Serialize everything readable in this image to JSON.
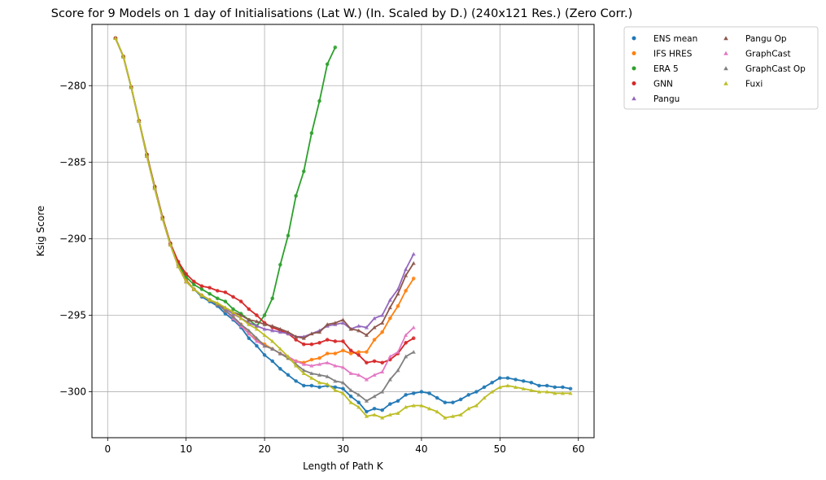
{
  "chart_data": {
    "type": "line",
    "title": "Score for 9 Models on 1 day of Initialisations (Lat W.) (In. Scaled by D.) (240x121 Res.) (Zero Corr.)",
    "xlabel": "Length of Path K",
    "ylabel": "Ksig Score",
    "xlim": [
      -2,
      62
    ],
    "ylim": [
      -303,
      -276
    ],
    "xticks": [
      0,
      10,
      20,
      30,
      40,
      50,
      60
    ],
    "xtick_labels": [
      "0",
      "10",
      "20",
      "30",
      "40",
      "50",
      "60"
    ],
    "yticks": [
      -280,
      -285,
      -290,
      -295,
      -300
    ],
    "ytick_labels": [
      "−280",
      "−285",
      "−290",
      "−295",
      "−300"
    ],
    "grid": true,
    "legend_position": "outside-top-right",
    "legend_columns": 2,
    "series": [
      {
        "name": "ENS mean",
        "color": "#1f77b4",
        "marker": "circle",
        "x": [
          1,
          2,
          3,
          4,
          5,
          6,
          7,
          8,
          9,
          10,
          11,
          12,
          13,
          14,
          15,
          16,
          17,
          18,
          19,
          20,
          21,
          22,
          23,
          24,
          25,
          26,
          27,
          28,
          29,
          30,
          31,
          32,
          33,
          34,
          35,
          36,
          37,
          38,
          39,
          40,
          41,
          42,
          43,
          44,
          45,
          46,
          47,
          48,
          49,
          50,
          51,
          52,
          53,
          54,
          55,
          56,
          57,
          58,
          59
        ],
        "y": [
          -276.9,
          -278.1,
          -280.1,
          -282.3,
          -284.6,
          -286.7,
          -288.7,
          -290.4,
          -291.7,
          -292.7,
          -293.3,
          -293.8,
          -294.1,
          -294.4,
          -294.9,
          -295.3,
          -295.8,
          -296.5,
          -297.0,
          -297.6,
          -298.0,
          -298.5,
          -298.9,
          -299.3,
          -299.6,
          -299.6,
          -299.7,
          -299.6,
          -299.7,
          -299.8,
          -300.3,
          -300.7,
          -301.3,
          -301.1,
          -301.2,
          -300.8,
          -300.6,
          -300.2,
          -300.1,
          -300.0,
          -300.1,
          -300.4,
          -300.7,
          -300.7,
          -300.5,
          -300.2,
          -300.0,
          -299.7,
          -299.4,
          -299.1,
          -299.1,
          -299.2,
          -299.3,
          -299.4,
          -299.6,
          -299.6,
          -299.7,
          -299.7,
          -299.8
        ]
      },
      {
        "name": "IFS HRES",
        "color": "#ff7f0e",
        "marker": "circle",
        "x": [
          1,
          2,
          3,
          4,
          5,
          6,
          7,
          8,
          9,
          10,
          11,
          12,
          13,
          14,
          15,
          16,
          17,
          18,
          19,
          20,
          21,
          22,
          23,
          24,
          25,
          26,
          27,
          28,
          29,
          30,
          31,
          32,
          33,
          34,
          35,
          36,
          37,
          38,
          39
        ],
        "y": [
          -276.9,
          -278.1,
          -280.1,
          -282.3,
          -284.6,
          -286.7,
          -288.7,
          -290.4,
          -291.7,
          -292.7,
          -293.3,
          -293.7,
          -294.0,
          -294.3,
          -294.7,
          -295.1,
          -295.6,
          -296.2,
          -296.6,
          -296.9,
          -297.2,
          -297.5,
          -297.8,
          -298.0,
          -298.1,
          -297.9,
          -297.8,
          -297.5,
          -297.5,
          -297.3,
          -297.5,
          -297.4,
          -297.4,
          -296.6,
          -296.1,
          -295.2,
          -294.4,
          -293.4,
          -292.6
        ]
      },
      {
        "name": "ERA 5",
        "color": "#2ca02c",
        "marker": "circle",
        "x": [
          1,
          2,
          3,
          4,
          5,
          6,
          7,
          8,
          9,
          10,
          11,
          12,
          13,
          14,
          15,
          16,
          17,
          18,
          19,
          20,
          21,
          22,
          23,
          24,
          25,
          26,
          27,
          28,
          29
        ],
        "y": [
          -276.9,
          -278.1,
          -280.1,
          -282.3,
          -284.5,
          -286.6,
          -288.6,
          -290.3,
          -291.6,
          -292.5,
          -293.0,
          -293.3,
          -293.6,
          -293.9,
          -294.1,
          -294.6,
          -294.9,
          -295.3,
          -295.7,
          -295.0,
          -293.9,
          -291.7,
          -289.8,
          -287.2,
          -285.6,
          -283.1,
          -281.0,
          -278.6,
          -277.5
        ]
      },
      {
        "name": "GNN",
        "color": "#d62728",
        "marker": "circle",
        "x": [
          1,
          2,
          3,
          4,
          5,
          6,
          7,
          8,
          9,
          10,
          11,
          12,
          13,
          14,
          15,
          16,
          17,
          18,
          19,
          20,
          21,
          22,
          23,
          24,
          25,
          26,
          27,
          28,
          29,
          30,
          31,
          32,
          33,
          34,
          35,
          36,
          37,
          38,
          39
        ],
        "y": [
          -276.9,
          -278.1,
          -280.1,
          -282.3,
          -284.5,
          -286.6,
          -288.6,
          -290.3,
          -291.5,
          -292.3,
          -292.8,
          -293.1,
          -293.2,
          -293.4,
          -293.5,
          -293.8,
          -294.1,
          -294.6,
          -295.0,
          -295.5,
          -295.8,
          -296.0,
          -296.2,
          -296.6,
          -296.9,
          -296.9,
          -296.8,
          -296.6,
          -296.7,
          -296.7,
          -297.3,
          -297.6,
          -298.1,
          -298.0,
          -298.1,
          -297.9,
          -297.5,
          -296.8,
          -296.5
        ]
      },
      {
        "name": "Pangu",
        "color": "#9467bd",
        "marker": "triangle",
        "x": [
          1,
          2,
          3,
          4,
          5,
          6,
          7,
          8,
          9,
          10,
          11,
          12,
          13,
          14,
          15,
          16,
          17,
          18,
          19,
          20,
          21,
          22,
          23,
          24,
          25,
          26,
          27,
          28,
          29,
          30,
          31,
          32,
          33,
          34,
          35,
          36,
          37,
          38,
          39
        ],
        "y": [
          -276.9,
          -278.1,
          -280.1,
          -282.3,
          -284.6,
          -286.7,
          -288.7,
          -290.4,
          -291.8,
          -292.8,
          -293.3,
          -293.7,
          -294.0,
          -294.3,
          -294.6,
          -294.9,
          -295.2,
          -295.5,
          -295.7,
          -295.9,
          -296.0,
          -296.1,
          -296.2,
          -296.4,
          -296.4,
          -296.2,
          -296.0,
          -295.7,
          -295.6,
          -295.5,
          -295.9,
          -295.7,
          -295.8,
          -295.2,
          -295.0,
          -294.0,
          -293.3,
          -292.0,
          -291.0
        ]
      },
      {
        "name": "Pangu Op",
        "color": "#8c564b",
        "marker": "triangle",
        "x": [
          1,
          2,
          3,
          4,
          5,
          6,
          7,
          8,
          9,
          10,
          11,
          12,
          13,
          14,
          15,
          16,
          17,
          18,
          19,
          20,
          21,
          22,
          23,
          24,
          25,
          26,
          27,
          28,
          29,
          30,
          31,
          32,
          33,
          34,
          35,
          36,
          37,
          38,
          39
        ],
        "y": [
          -276.9,
          -278.1,
          -280.1,
          -282.3,
          -284.6,
          -286.7,
          -288.7,
          -290.4,
          -291.8,
          -292.8,
          -293.3,
          -293.7,
          -294.0,
          -294.3,
          -294.5,
          -294.8,
          -295.0,
          -295.3,
          -295.4,
          -295.6,
          -295.7,
          -295.9,
          -296.1,
          -296.4,
          -296.5,
          -296.2,
          -296.1,
          -295.6,
          -295.5,
          -295.3,
          -295.9,
          -296.0,
          -296.3,
          -295.8,
          -295.5,
          -294.5,
          -293.6,
          -292.4,
          -291.6
        ]
      },
      {
        "name": "GraphCast",
        "color": "#e377c2",
        "marker": "triangle",
        "x": [
          1,
          2,
          3,
          4,
          5,
          6,
          7,
          8,
          9,
          10,
          11,
          12,
          13,
          14,
          15,
          16,
          17,
          18,
          19,
          20,
          21,
          22,
          23,
          24,
          25,
          26,
          27,
          28,
          29,
          30,
          31,
          32,
          33,
          34,
          35,
          36,
          37,
          38,
          39
        ],
        "y": [
          -276.9,
          -278.1,
          -280.1,
          -282.3,
          -284.6,
          -286.7,
          -288.7,
          -290.4,
          -291.8,
          -292.8,
          -293.3,
          -293.7,
          -294.0,
          -294.3,
          -294.7,
          -295.2,
          -295.7,
          -296.2,
          -296.7,
          -297.0,
          -297.2,
          -297.5,
          -297.7,
          -298.0,
          -298.2,
          -298.3,
          -298.2,
          -298.1,
          -298.3,
          -298.4,
          -298.8,
          -298.9,
          -299.2,
          -298.9,
          -298.7,
          -297.7,
          -297.4,
          -296.3,
          -295.8
        ]
      },
      {
        "name": "GraphCast Op",
        "color": "#7f7f7f",
        "marker": "triangle",
        "x": [
          1,
          2,
          3,
          4,
          5,
          6,
          7,
          8,
          9,
          10,
          11,
          12,
          13,
          14,
          15,
          16,
          17,
          18,
          19,
          20,
          21,
          22,
          23,
          24,
          25,
          26,
          27,
          28,
          29,
          30,
          31,
          32,
          33,
          34,
          35,
          36,
          37,
          38,
          39
        ],
        "y": [
          -276.9,
          -278.1,
          -280.1,
          -282.3,
          -284.6,
          -286.7,
          -288.7,
          -290.4,
          -291.8,
          -292.8,
          -293.3,
          -293.7,
          -294.0,
          -294.3,
          -294.7,
          -295.1,
          -295.6,
          -296.0,
          -296.5,
          -297.0,
          -297.2,
          -297.5,
          -297.8,
          -298.2,
          -298.6,
          -298.8,
          -298.9,
          -299.0,
          -299.3,
          -299.4,
          -299.9,
          -300.2,
          -300.6,
          -300.3,
          -300.0,
          -299.2,
          -298.6,
          -297.7,
          -297.4
        ]
      },
      {
        "name": "Fuxi",
        "color": "#bcbd22",
        "marker": "triangle",
        "x": [
          1,
          2,
          3,
          4,
          5,
          6,
          7,
          8,
          9,
          10,
          11,
          12,
          13,
          14,
          15,
          16,
          17,
          18,
          19,
          20,
          21,
          22,
          23,
          24,
          25,
          26,
          27,
          28,
          29,
          30,
          31,
          32,
          33,
          34,
          35,
          36,
          37,
          38,
          39,
          40,
          41,
          42,
          43,
          44,
          45,
          46,
          47,
          48,
          49,
          50,
          51,
          52,
          53,
          54,
          55,
          56,
          57,
          58,
          59
        ],
        "y": [
          -276.9,
          -278.1,
          -280.1,
          -282.3,
          -284.6,
          -286.7,
          -288.7,
          -290.4,
          -291.8,
          -292.8,
          -293.3,
          -293.7,
          -294.0,
          -294.2,
          -294.5,
          -294.8,
          -295.2,
          -295.6,
          -295.9,
          -296.3,
          -296.7,
          -297.2,
          -297.7,
          -298.3,
          -298.8,
          -299.1,
          -299.4,
          -299.5,
          -299.9,
          -300.1,
          -300.7,
          -301.0,
          -301.6,
          -301.5,
          -301.7,
          -301.5,
          -301.4,
          -301.0,
          -300.9,
          -300.9,
          -301.1,
          -301.3,
          -301.7,
          -301.6,
          -301.5,
          -301.1,
          -300.9,
          -300.4,
          -300.0,
          -299.7,
          -299.6,
          -299.7,
          -299.8,
          -299.9,
          -300.0,
          -300.0,
          -300.1,
          -300.1,
          -300.1
        ]
      }
    ]
  }
}
